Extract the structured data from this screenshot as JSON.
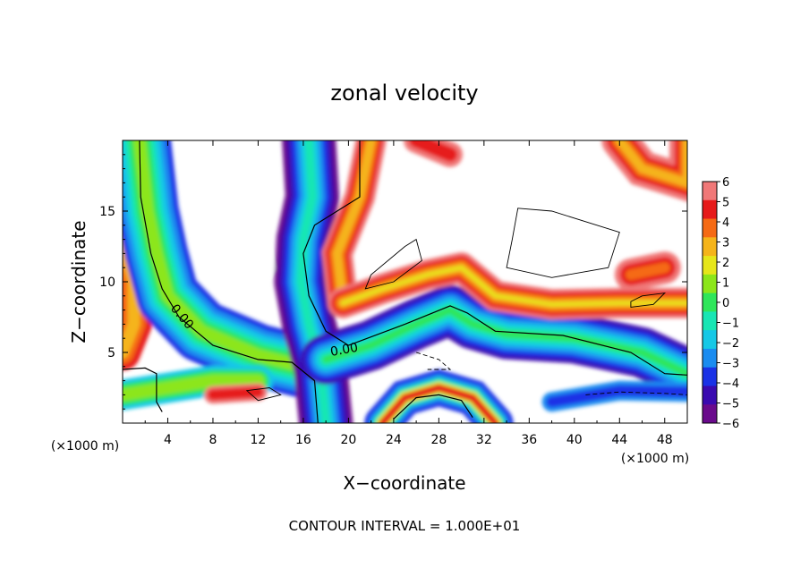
{
  "chart_data": {
    "type": "heatmap",
    "title": "zonal velocity",
    "xlabel": "X−coordinate",
    "ylabel": "Z−coordinate",
    "x_unit": "(×1000 m)",
    "y_unit": "(×1000 m)",
    "footer": "CONTOUR INTERVAL = 1.000E+01",
    "xlim": [
      0,
      50
    ],
    "ylim": [
      0,
      20
    ],
    "x_ticks": [
      4,
      8,
      12,
      16,
      20,
      24,
      28,
      32,
      36,
      40,
      44,
      48
    ],
    "y_ticks": [
      5,
      10,
      15
    ],
    "contour_labels": [
      "0.00",
      "0.00"
    ],
    "colorbar": {
      "ticks": [
        "6",
        "5",
        "4",
        "3",
        "2",
        "1",
        "0",
        "−1",
        "−2",
        "−3",
        "−4",
        "−5",
        "−6"
      ],
      "range": [
        -6,
        6
      ]
    },
    "features": [
      {
        "name": "descending band",
        "x": [
          1,
          4,
          9
        ],
        "z": [
          20,
          10,
          3
        ]
      },
      {
        "name": "central shear band",
        "x": [
          17,
          18,
          16,
          18
        ],
        "z": [
          20,
          12,
          6,
          0
        ]
      },
      {
        "name": "lower branch",
        "x": [
          20,
          28,
          36,
          50
        ],
        "z": [
          5,
          8,
          6,
          4
        ]
      }
    ]
  }
}
